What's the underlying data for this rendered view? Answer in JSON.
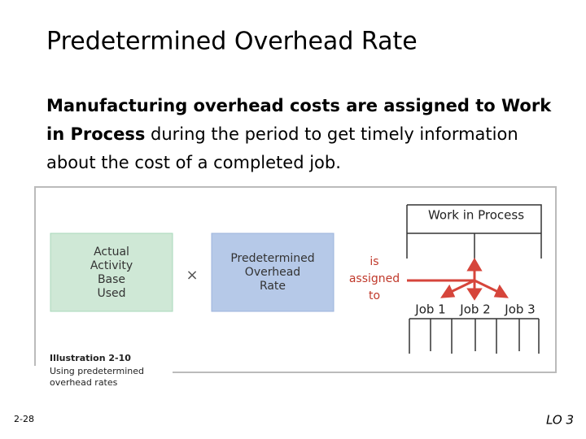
{
  "header": {
    "title": "Predetermined Overhead Rate"
  },
  "body": {
    "bold": "Manufacturing overhead costs are assigned to Work in Process",
    "rest": " during the period to get timely information about the cost of a completed job."
  },
  "illustration": {
    "base_box": {
      "lines": [
        "Actual",
        "Activity",
        "Base",
        "Used"
      ]
    },
    "operator": "×",
    "rate_box": {
      "lines": [
        "Predetermined",
        "Overhead",
        "Rate"
      ]
    },
    "assigned": {
      "lines": [
        "is",
        "assigned",
        "to"
      ]
    },
    "account": "Work in Process",
    "jobs": [
      "Job 1",
      "Job 2",
      "Job 3"
    ],
    "caption": {
      "number": "Illustration 2-10",
      "lines": [
        "Using predetermined",
        "overhead rates"
      ]
    }
  },
  "footer": {
    "slide_number": "2-28",
    "objective": "LO 3"
  }
}
